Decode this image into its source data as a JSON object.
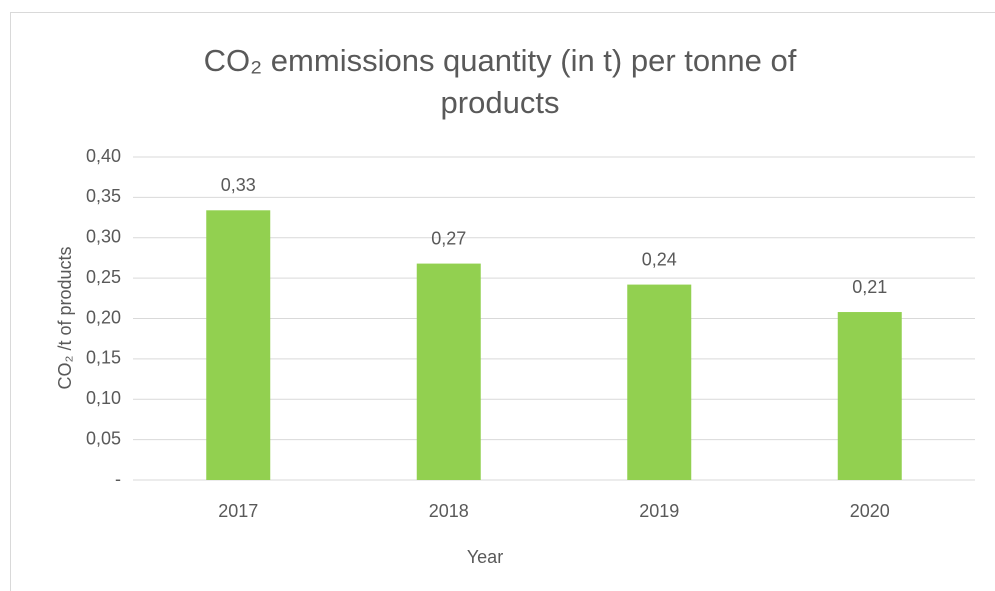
{
  "chart_data": {
    "type": "bar",
    "title": "CO₂ emmissions quantity (in t) per tonne of products",
    "y_label": "CO₂ /t of products",
    "x_label": "Year",
    "categories": [
      "2017",
      "2018",
      "2019",
      "2020"
    ],
    "values": [
      0.334,
      0.268,
      0.242,
      0.208
    ],
    "value_labels": [
      "0,33",
      "0,27",
      "0,24",
      "0,21"
    ],
    "color": "#92d050",
    "ylim": [
      0,
      0.4
    ],
    "yticks": [
      {
        "value": 0,
        "label": "-"
      },
      {
        "value": 0.05,
        "label": "0,05"
      },
      {
        "value": 0.1,
        "label": "0,10"
      },
      {
        "value": 0.15,
        "label": "0,15"
      },
      {
        "value": 0.2,
        "label": "0,20"
      },
      {
        "value": 0.25,
        "label": "0,25"
      },
      {
        "value": 0.3,
        "label": "0,30"
      },
      {
        "value": 0.35,
        "label": "0,35"
      },
      {
        "value": 0.4,
        "label": "0,40"
      }
    ],
    "grid": true
  }
}
